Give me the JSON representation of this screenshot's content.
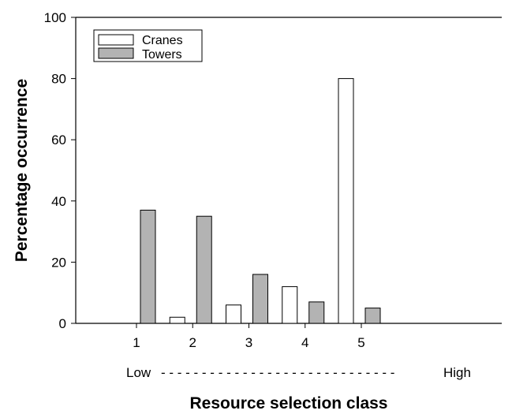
{
  "chart_data": {
    "type": "bar",
    "title": "",
    "xlabel": "Resource selection class",
    "ylabel": "Percentage occurrence",
    "categories": [
      "1",
      "2",
      "3",
      "4",
      "5"
    ],
    "ylim": [
      0,
      100
    ],
    "yticks": [
      "0",
      "20",
      "40",
      "60",
      "80",
      "100"
    ],
    "series": [
      {
        "name": "Cranes",
        "values": [
          0,
          2,
          6,
          12,
          80
        ],
        "color": "#ffffff"
      },
      {
        "name": "Towers",
        "values": [
          37,
          35,
          16,
          7,
          5
        ],
        "color": "#b3b3b3"
      }
    ],
    "range_labels": {
      "low": "Low",
      "dashes": "- - - - - - - - - - - - - - - - - - - - - - - - - - - - -",
      "high": "High"
    },
    "legend_position": "top-left",
    "grid": false
  }
}
